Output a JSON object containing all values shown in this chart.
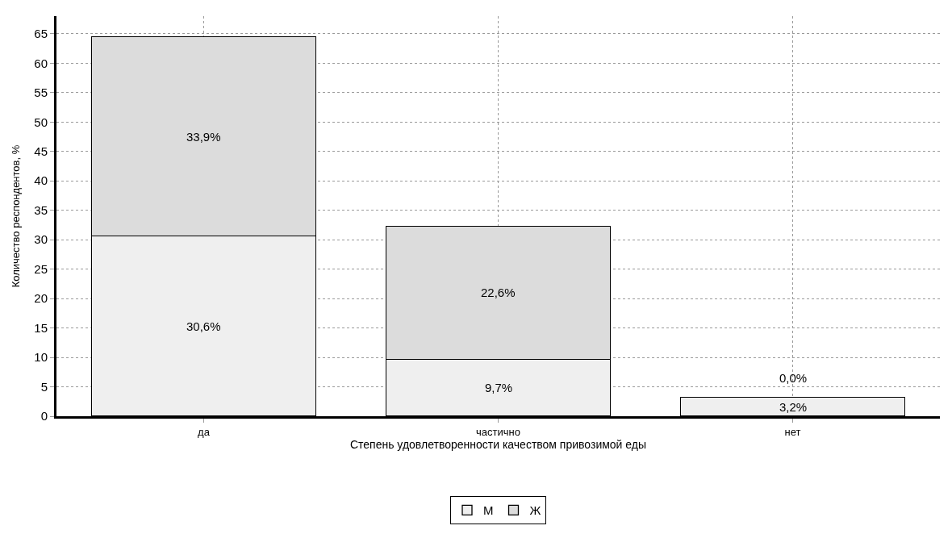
{
  "chart_data": {
    "type": "bar",
    "stacked": true,
    "xlabel": "Степень удовлетворенности качеством привозимой еды",
    "ylabel": "Количество респондентов, %",
    "categories": [
      "да",
      "частично",
      "нет"
    ],
    "series": [
      {
        "name": "М",
        "color": "#efefef",
        "values": [
          30.6,
          9.7,
          3.2
        ],
        "value_labels": [
          "30,6%",
          "9,7%",
          "3,2%"
        ]
      },
      {
        "name": "Ж",
        "color": "#dcdcdc",
        "values": [
          33.9,
          22.6,
          0.0
        ],
        "value_labels": [
          "33,9%",
          "22,6%",
          "0,0%"
        ]
      }
    ],
    "ylim": [
      0,
      68
    ],
    "yticks": [
      0,
      5,
      10,
      15,
      20,
      25,
      30,
      35,
      40,
      45,
      50,
      55,
      60,
      65
    ],
    "grid": true,
    "legend": "bottom"
  }
}
